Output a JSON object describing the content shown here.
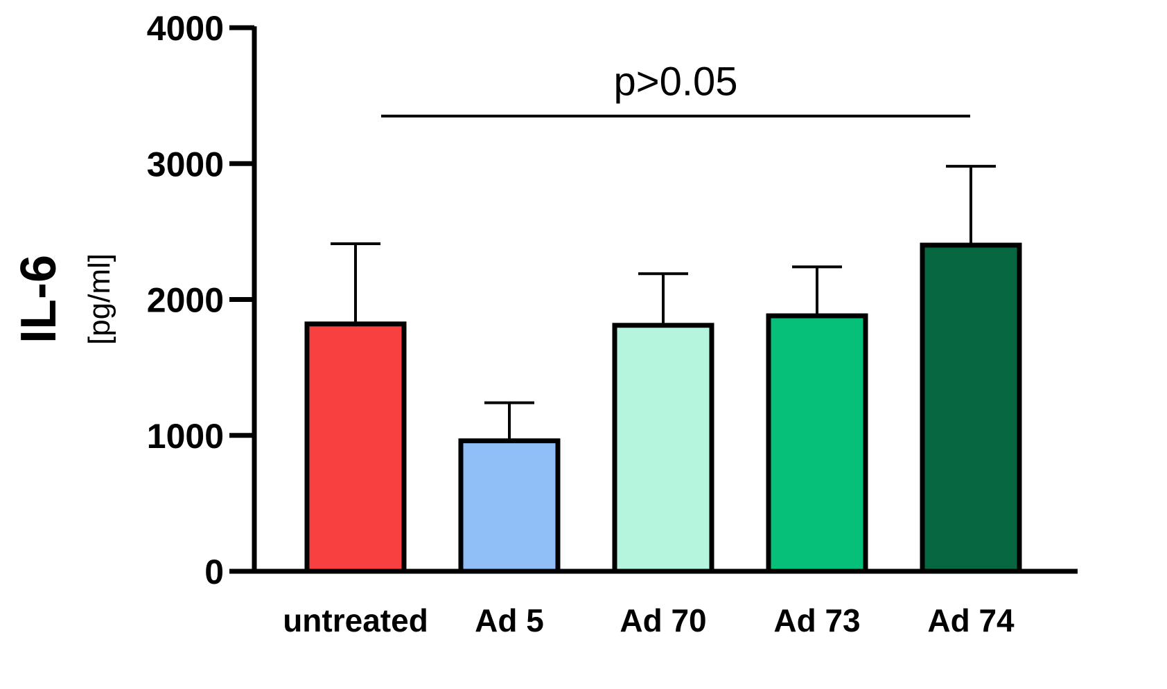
{
  "chart_data": {
    "type": "bar",
    "title": "",
    "xlabel": "",
    "ylabel": "IL-6",
    "ylabel_unit": "[pg/ml]",
    "ylim": [
      0,
      4000
    ],
    "yticks": [
      0,
      1000,
      2000,
      3000,
      4000
    ],
    "ytick_labels": [
      "0",
      "1000",
      "2000",
      "3000",
      "4000"
    ],
    "categories": [
      "untreated",
      "Ad 5",
      "Ad 70",
      "Ad 73",
      "Ad 74"
    ],
    "values": [
      1820,
      960,
      1810,
      1880,
      2400
    ],
    "errors": [
      590,
      280,
      380,
      360,
      580
    ],
    "colors": [
      "#f94040",
      "#90bff7",
      "#b5f5dd",
      "#06bf78",
      "#056640"
    ],
    "annotation": {
      "text": "p>0.05",
      "from_category": "untreated",
      "to_category": "Ad 74",
      "y": 3350
    },
    "grid": false,
    "legend": "none"
  }
}
